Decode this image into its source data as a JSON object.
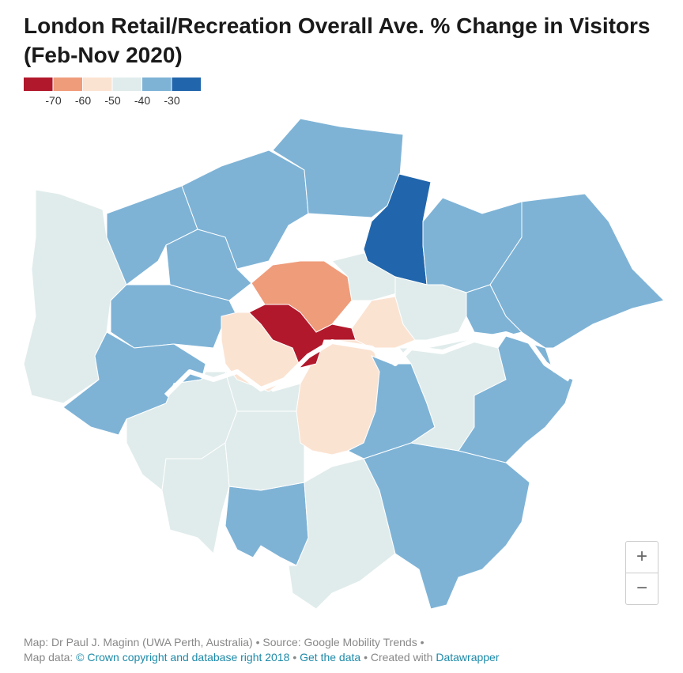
{
  "title": "London Retail/Recreation Overall Ave. % Change in Visitors (Feb-Nov 2020)",
  "legend": {
    "colors": [
      "#b2182b",
      "#ef9c7b",
      "#fbe3d2",
      "#e0eceb",
      "#7eb3d6",
      "#2166ac"
    ],
    "ticks": [
      -70,
      -60,
      -50,
      -40,
      -30
    ]
  },
  "map": {
    "regions": [
      -45,
      -35,
      -35,
      -35,
      -35,
      -35,
      -35,
      -45,
      -45,
      -35,
      -45,
      -35,
      -45,
      -45,
      -55,
      -35,
      -45,
      -35,
      -75,
      -55,
      -65,
      -45,
      -55,
      -25,
      -35,
      -45,
      -35,
      -35
    ]
  },
  "zoom": {
    "in": "+",
    "out": "−"
  },
  "footer": {
    "line1": "Map: Dr Paul J. Maginn (UWA Perth, Australia) • Source: Google Mobility Trends •",
    "prefix": "Map data:",
    "copyright": "© Crown copyright and database right 2018",
    "sep1": "•",
    "get_data": "Get the data",
    "created": "• Created with",
    "tool": "Datawrapper"
  }
}
